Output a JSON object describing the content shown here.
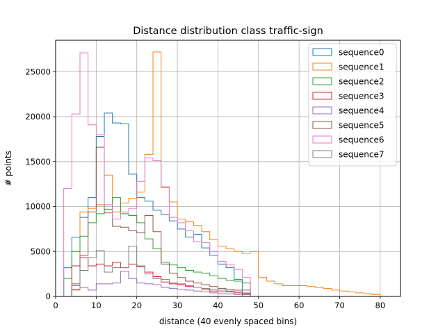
{
  "chart_data": {
    "type": "histogram",
    "title": "Distance distribution class traffic-sign",
    "xlabel": "distance (40 evenly spaced bins)",
    "ylabel": "# points",
    "xlim": [
      0,
      85
    ],
    "ylim": [
      0,
      28500
    ],
    "xticks": [
      0,
      10,
      20,
      30,
      40,
      50,
      60,
      70,
      80
    ],
    "yticks": [
      0,
      5000,
      10000,
      15000,
      20000,
      25000
    ],
    "grid": true,
    "legend_position": "upper right",
    "series": [
      {
        "name": "sequence0",
        "color": "#1f77b4",
        "edges": [
          2,
          4,
          6,
          8,
          10,
          12,
          14,
          16,
          18,
          20,
          22,
          24,
          26,
          28,
          30,
          32,
          34,
          36,
          38,
          40,
          42,
          44,
          46,
          48,
          50
        ],
        "values": [
          3200,
          6600,
          8800,
          11000,
          17800,
          20400,
          19300,
          19200,
          13600,
          11000,
          10600,
          9600,
          9100,
          8400,
          7500,
          6600,
          6900,
          5400,
          4600,
          3600,
          3200,
          1900,
          0,
          0
        ]
      },
      {
        "name": "sequence1",
        "color": "#ff7f0e",
        "edges": [
          2,
          4,
          6,
          8,
          10,
          12,
          14,
          16,
          18,
          20,
          22,
          24,
          26,
          28,
          30,
          32,
          34,
          36,
          38,
          40,
          42,
          44,
          46,
          48,
          50,
          52,
          54,
          56,
          58,
          60,
          62,
          64,
          66,
          68,
          70,
          72,
          74,
          76,
          78,
          80,
          82
        ],
        "values": [
          0,
          700,
          9400,
          9800,
          10200,
          13500,
          9400,
          10400,
          10900,
          11600,
          15800,
          27200,
          12100,
          10500,
          8600,
          8300,
          7900,
          7200,
          6300,
          5600,
          5300,
          5000,
          4800,
          5000,
          2100,
          1700,
          1400,
          1200,
          1200,
          1200,
          1100,
          1000,
          900,
          700,
          600,
          500,
          400,
          300,
          200,
          0
        ]
      },
      {
        "name": "sequence2",
        "color": "#2ca02c",
        "edges": [
          2,
          4,
          6,
          8,
          10,
          12,
          14,
          16,
          18,
          20,
          22,
          24,
          26,
          28,
          30,
          32,
          34,
          36,
          38,
          40,
          42,
          44,
          46,
          48,
          50
        ],
        "values": [
          2000,
          5000,
          6700,
          8200,
          9200,
          9700,
          11000,
          9200,
          9000,
          8200,
          6400,
          5300,
          3800,
          3500,
          3200,
          2900,
          2700,
          2600,
          2300,
          2000,
          1800,
          1700,
          1500,
          0
        ]
      },
      {
        "name": "sequence3",
        "color": "#d62728",
        "edges": [
          2,
          4,
          6,
          8,
          10,
          12,
          14,
          16,
          18,
          20,
          22,
          24,
          26,
          28,
          30,
          32,
          34,
          36,
          38,
          40,
          42,
          44,
          46,
          48,
          50
        ],
        "values": [
          0,
          3400,
          4300,
          3400,
          3600,
          3400,
          3800,
          3200,
          3600,
          3300,
          2700,
          2200,
          1600,
          1400,
          1300,
          1100,
          1000,
          800,
          600,
          500,
          500,
          400,
          300,
          0
        ]
      },
      {
        "name": "sequence4",
        "color": "#9467bd",
        "edges": [
          2,
          4,
          6,
          8,
          10,
          12,
          14,
          16,
          18,
          20,
          22,
          24,
          26,
          28,
          30,
          32,
          34,
          36,
          38,
          40,
          42,
          44,
          46,
          48,
          50
        ],
        "values": [
          0,
          800,
          1000,
          700,
          1400,
          1400,
          1500,
          2800,
          2000,
          1500,
          1400,
          1300,
          1000,
          900,
          800,
          700,
          600,
          500,
          400,
          300,
          300,
          200,
          200,
          0
        ]
      },
      {
        "name": "sequence5",
        "color": "#8c564b",
        "edges": [
          2,
          4,
          6,
          8,
          10,
          12,
          14,
          16,
          18,
          20,
          22,
          24,
          26,
          28,
          30,
          32,
          34,
          36,
          38,
          40,
          42,
          44,
          46,
          48,
          50
        ],
        "values": [
          0,
          1400,
          4600,
          9400,
          16600,
          9300,
          7800,
          7700,
          7300,
          7100,
          9000,
          7200,
          3600,
          2600,
          2100,
          1700,
          1500,
          1300,
          1100,
          900,
          800,
          700,
          700,
          0
        ]
      },
      {
        "name": "sequence6",
        "color": "#e377c2",
        "edges": [
          2,
          4,
          6,
          8,
          10,
          12,
          14,
          16,
          18,
          20,
          22,
          24,
          26,
          28,
          30,
          32,
          34,
          36,
          38,
          40,
          42,
          44,
          46,
          48,
          50
        ],
        "values": [
          12000,
          20300,
          27100,
          19100,
          18000,
          10200,
          8600,
          9400,
          9800,
          12800,
          15400,
          15100,
          12200,
          8800,
          8200,
          7300,
          6100,
          6000,
          5000,
          3900,
          3500,
          3000,
          2100,
          0
        ]
      },
      {
        "name": "sequence7",
        "color": "#7f7f7f",
        "edges": [
          2,
          4,
          6,
          8,
          10,
          12,
          14,
          16,
          18,
          20,
          22,
          24,
          26,
          28,
          30,
          32,
          34,
          36,
          38,
          40,
          42,
          44,
          46,
          48,
          50
        ],
        "values": [
          0,
          1200,
          2900,
          4300,
          5100,
          2700,
          3200,
          3200,
          5600,
          3400,
          2500,
          2000,
          1900,
          1500,
          1400,
          1200,
          1000,
          900,
          800,
          700,
          600,
          500,
          400,
          0
        ]
      }
    ]
  }
}
